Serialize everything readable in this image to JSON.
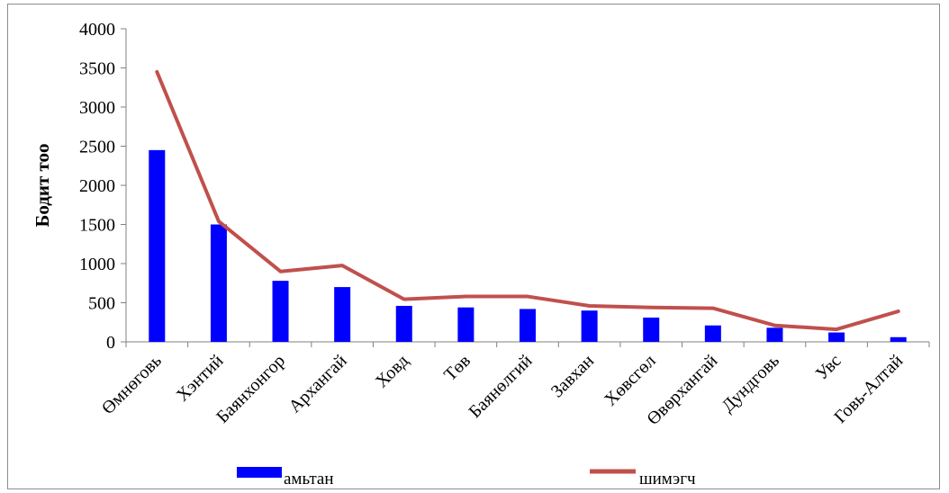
{
  "chart_data": {
    "type": "bar",
    "title": "",
    "xlabel": "",
    "ylabel": "Бодит тоо",
    "ylim": [
      0,
      4000
    ],
    "yticks": [
      0,
      500,
      1000,
      1500,
      2000,
      2500,
      3000,
      3500,
      4000
    ],
    "grid": false,
    "legend_position": "bottom",
    "categories": [
      "Өмнөговь",
      "Хэнтий",
      "Баянхонгор",
      "Архангай",
      "Ховд",
      "Төв",
      "Баянөлгий",
      "Завхан",
      "Хөвсгөл",
      "Өвөрхангай",
      "Дундговь",
      "Увс",
      "Говь-Алтай"
    ],
    "series": [
      {
        "name": "амьтан",
        "type": "bar",
        "color": "#0000ff",
        "values": [
          2450,
          1500,
          780,
          700,
          460,
          440,
          420,
          400,
          310,
          210,
          180,
          120,
          60
        ]
      },
      {
        "name": "шимэгч",
        "type": "line",
        "color": "#c0504d",
        "values": [
          3450,
          1540,
          900,
          975,
          545,
          580,
          580,
          460,
          440,
          430,
          210,
          160,
          390
        ]
      }
    ]
  }
}
